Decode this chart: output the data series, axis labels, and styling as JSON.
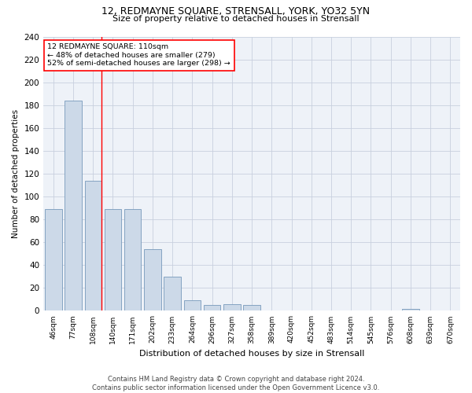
{
  "title1": "12, REDMAYNE SQUARE, STRENSALL, YORK, YO32 5YN",
  "title2": "Size of property relative to detached houses in Strensall",
  "xlabel": "Distribution of detached houses by size in Strensall",
  "ylabel": "Number of detached properties",
  "bar_color": "#ccd9e8",
  "bar_edge_color": "#7799bb",
  "bg_color": "#eef2f8",
  "grid_color": "#c8d0de",
  "tick_labels": [
    "46sqm",
    "77sqm",
    "108sqm",
    "140sqm",
    "171sqm",
    "202sqm",
    "233sqm",
    "264sqm",
    "296sqm",
    "327sqm",
    "358sqm",
    "389sqm",
    "420sqm",
    "452sqm",
    "483sqm",
    "514sqm",
    "545sqm",
    "576sqm",
    "608sqm",
    "639sqm",
    "670sqm"
  ],
  "bar_heights": [
    89,
    184,
    114,
    89,
    89,
    54,
    30,
    9,
    5,
    6,
    5,
    0,
    0,
    0,
    0,
    0,
    0,
    0,
    2,
    0,
    0
  ],
  "ylim": [
    0,
    240
  ],
  "yticks": [
    0,
    20,
    40,
    60,
    80,
    100,
    120,
    140,
    160,
    180,
    200,
    220,
    240
  ],
  "annotation_title": "12 REDMAYNE SQUARE: 110sqm",
  "annotation_line1": "← 48% of detached houses are smaller (279)",
  "annotation_line2": "52% of semi-detached houses are larger (298) →",
  "redline_bin": 2,
  "footer1": "Contains HM Land Registry data © Crown copyright and database right 2024.",
  "footer2": "Contains public sector information licensed under the Open Government Licence v3.0."
}
